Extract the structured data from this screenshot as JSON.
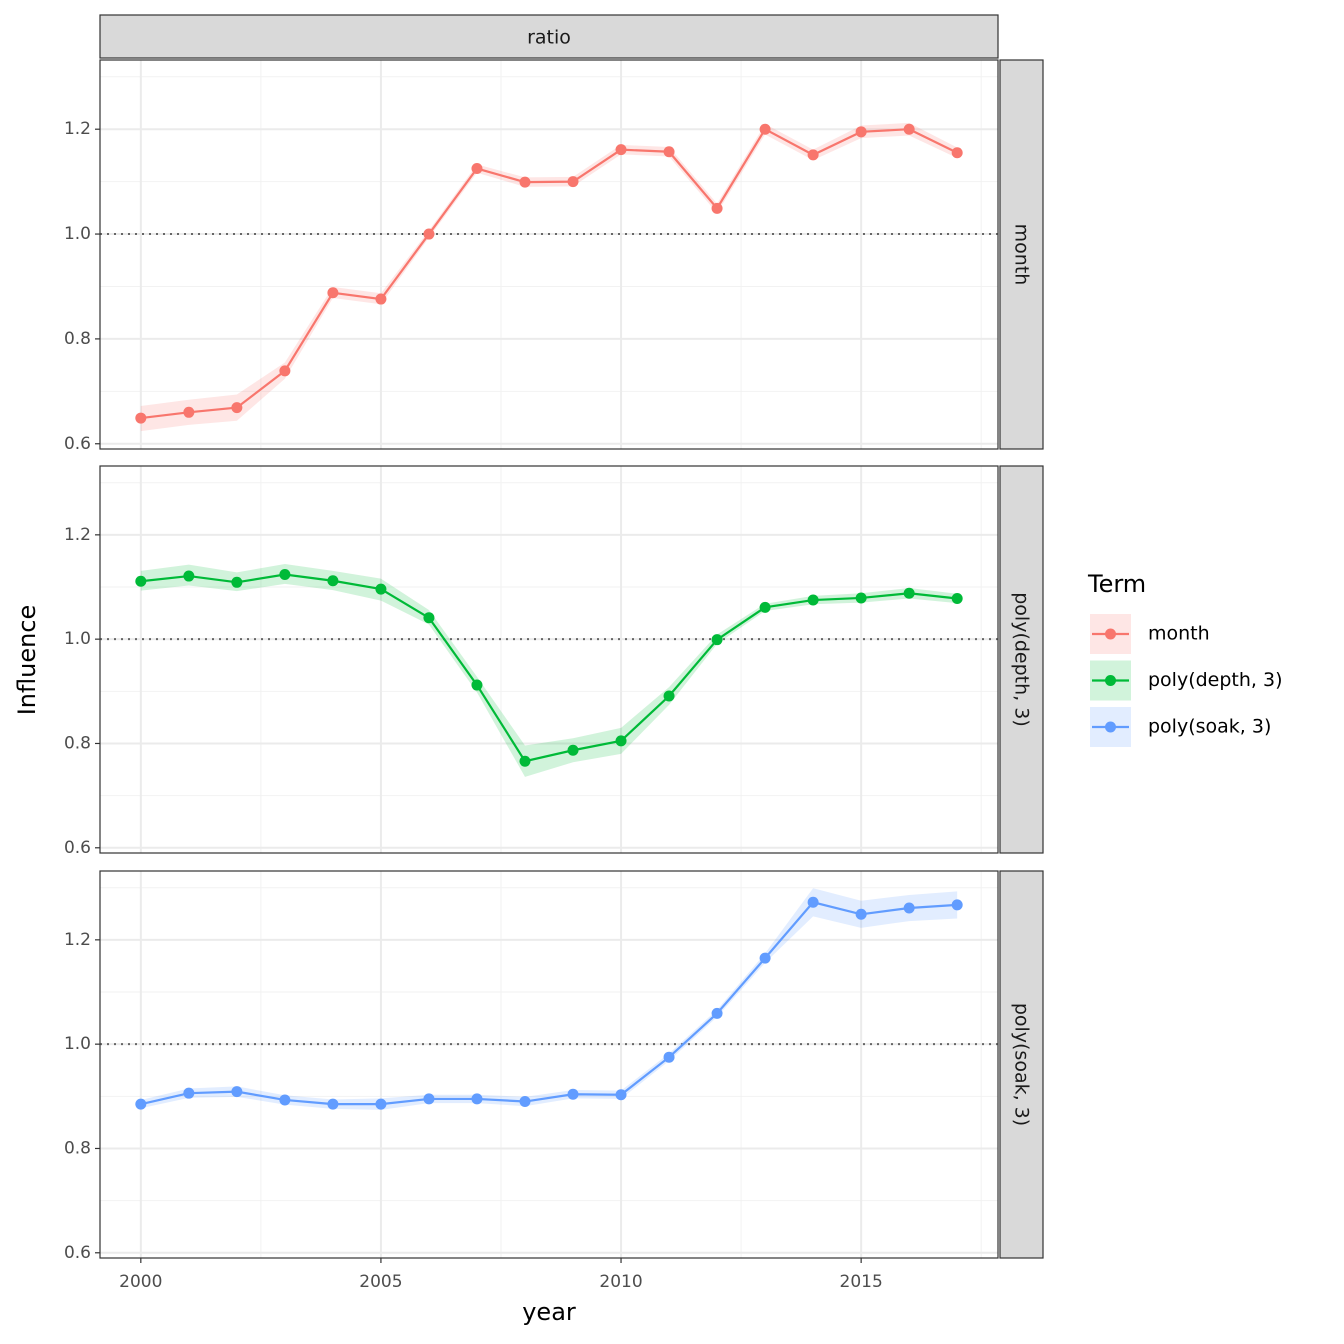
{
  "chart_data": {
    "type": "line",
    "facet_column": "ratio",
    "xlabel": "year",
    "ylabel": "Influence",
    "legend_title": "Term",
    "legend": "right",
    "x": [
      2000,
      2001,
      2002,
      2003,
      2004,
      2005,
      2006,
      2007,
      2008,
      2009,
      2010,
      2011,
      2012,
      2013,
      2014,
      2015,
      2016,
      2017
    ],
    "xlim": [
      1999.15,
      2017.85
    ],
    "xticks": [
      2000,
      2005,
      2010,
      2015
    ],
    "xminor": [
      2002.5,
      2007.5,
      2012.5,
      2017.5
    ],
    "ylim": [
      0.59,
      1.332
    ],
    "yticks": [
      {
        "value": 0.6,
        "label": "0.6"
      },
      {
        "value": 0.8,
        "label": "0.8"
      },
      {
        "value": 1.0,
        "label": "1.0"
      },
      {
        "value": 1.2,
        "label": "1.2"
      }
    ],
    "yminor": [
      0.7,
      0.9,
      1.1,
      1.3
    ],
    "hline": 1,
    "grid": true,
    "series": [
      {
        "name": "month",
        "color": "#F8766D",
        "values": [
          0.649,
          0.66,
          0.669,
          0.739,
          0.888,
          0.876,
          1.0,
          1.125,
          1.099,
          1.1,
          1.161,
          1.157,
          1.049,
          1.2,
          1.151,
          1.195,
          1.2,
          1.155
        ],
        "lower": [
          0.624,
          0.636,
          0.644,
          0.724,
          0.878,
          0.866,
          0.993,
          1.117,
          1.09,
          1.091,
          1.152,
          1.148,
          1.04,
          1.19,
          1.141,
          1.183,
          1.188,
          1.145
        ],
        "upper": [
          0.672,
          0.684,
          0.694,
          0.755,
          0.899,
          0.887,
          1.007,
          1.133,
          1.108,
          1.109,
          1.17,
          1.166,
          1.058,
          1.21,
          1.161,
          1.207,
          1.212,
          1.165
        ]
      },
      {
        "name": "poly(depth, 3)",
        "color": "#00BA38",
        "values": [
          1.111,
          1.121,
          1.109,
          1.124,
          1.112,
          1.096,
          1.041,
          0.912,
          0.766,
          0.787,
          0.805,
          0.891,
          0.999,
          1.061,
          1.075,
          1.079,
          1.088,
          1.078
        ],
        "lower": [
          1.093,
          1.103,
          1.092,
          1.106,
          1.094,
          1.074,
          1.028,
          0.898,
          0.736,
          0.764,
          0.78,
          0.874,
          0.991,
          1.054,
          1.067,
          1.07,
          1.078,
          1.069
        ],
        "upper": [
          1.131,
          1.143,
          1.128,
          1.144,
          1.131,
          1.116,
          1.056,
          0.928,
          0.796,
          0.81,
          0.83,
          0.908,
          1.009,
          1.068,
          1.083,
          1.088,
          1.098,
          1.087
        ]
      },
      {
        "name": "poly(soak, 3)",
        "color": "#619CFF",
        "values": [
          0.885,
          0.906,
          0.909,
          0.893,
          0.885,
          0.885,
          0.895,
          0.895,
          0.89,
          0.904,
          0.903,
          0.975,
          1.059,
          1.165,
          1.272,
          1.249,
          1.261,
          1.267
        ],
        "lower": [
          0.877,
          0.897,
          0.899,
          0.884,
          0.876,
          0.874,
          0.887,
          0.887,
          0.881,
          0.896,
          0.895,
          0.968,
          1.052,
          1.156,
          1.245,
          1.223,
          1.236,
          1.241
        ],
        "upper": [
          0.893,
          0.915,
          0.919,
          0.902,
          0.894,
          0.896,
          0.903,
          0.903,
          0.899,
          0.912,
          0.911,
          0.982,
          1.066,
          1.174,
          1.299,
          1.275,
          1.286,
          1.293
        ]
      }
    ]
  }
}
